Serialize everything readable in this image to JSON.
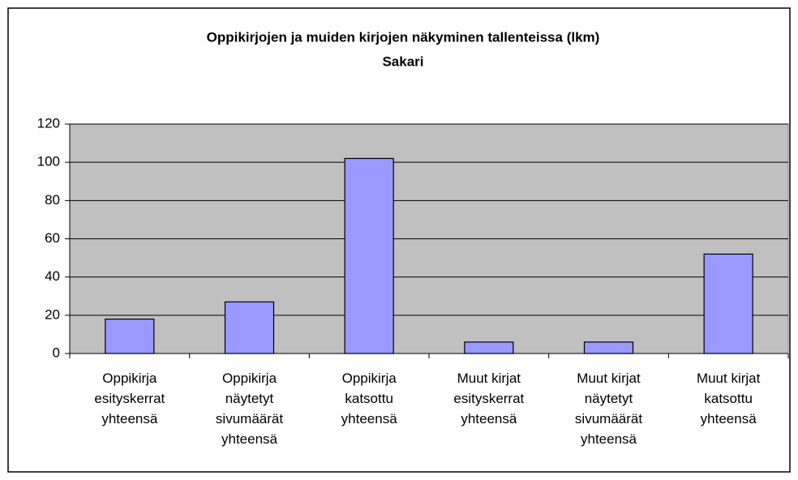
{
  "chart_data": {
    "type": "bar",
    "title": "Oppikirjojen ja muiden kirjojen näkyminen tallenteissa (lkm)",
    "subtitle": "Sakari",
    "categories": [
      "Oppikirja esityskerrat yhteensä",
      "Oppikirja näytetyt sivumäärät yhteensä",
      "Oppikirja katsottu yhteensä",
      "Muut kirjat esityskerrat yhteensä",
      "Muut kirjat näytetyt sivumäärät yhteensä",
      "Muut kirjat katsottu yhteensä"
    ],
    "values": [
      18,
      27,
      102,
      6,
      6,
      52
    ],
    "color": "#9999ff",
    "ylim": [
      0,
      120
    ],
    "yticks": [
      0,
      20,
      40,
      60,
      80,
      100,
      120
    ],
    "grid": true
  }
}
